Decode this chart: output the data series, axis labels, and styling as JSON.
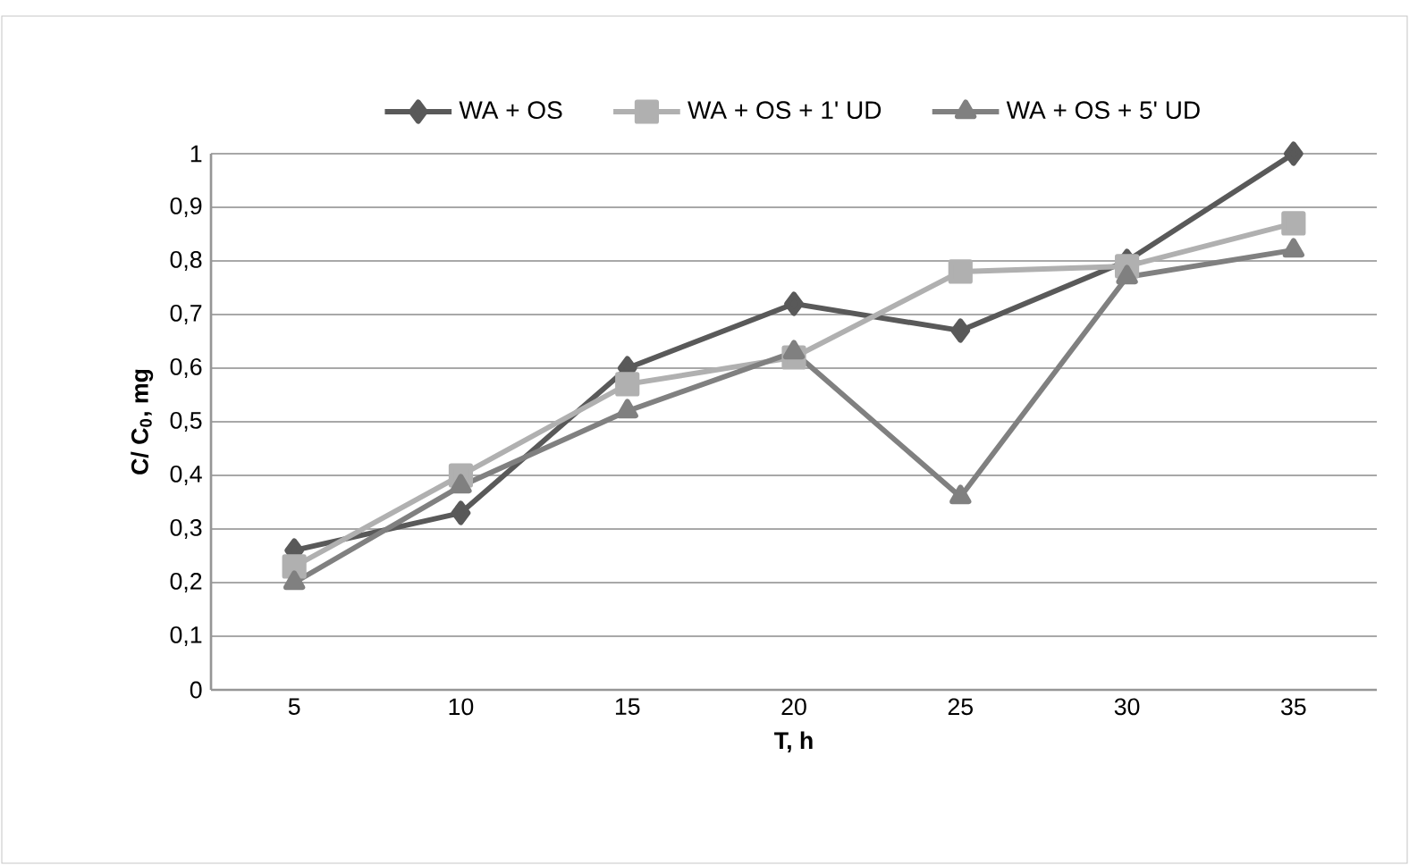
{
  "chart_data": {
    "type": "line",
    "xlabel": "T, h",
    "ylabel": "C/ C$_{0}$, mg",
    "categories": [
      "5",
      "10",
      "15",
      "20",
      "25",
      "30",
      "35"
    ],
    "series": [
      {
        "name": "WA + OS",
        "color": "#595959",
        "marker": "diamond",
        "values": [
          0.26,
          0.33,
          0.6,
          0.72,
          0.67,
          0.8,
          1.0
        ]
      },
      {
        "name": "WA + OS + 1' UD",
        "color": "#b0b0b0",
        "marker": "square",
        "values": [
          0.23,
          0.4,
          0.57,
          0.62,
          0.78,
          0.79,
          0.87
        ]
      },
      {
        "name": "WA + OS + 5' UD",
        "color": "#808080",
        "marker": "triangle",
        "values": [
          0.2,
          0.38,
          0.52,
          0.63,
          0.36,
          0.77,
          0.82
        ]
      }
    ],
    "ylim": [
      0,
      1
    ],
    "yticks": [
      0,
      {
        "value": 0.1,
        "label": "0,1"
      },
      {
        "value": 0.2,
        "label": "0,2"
      },
      {
        "value": 0.3,
        "label": "0,3"
      },
      {
        "value": 0.4,
        "label": "0,4"
      },
      {
        "value": 0.5,
        "label": "0,5"
      },
      {
        "value": 0.6,
        "label": "0,6"
      },
      {
        "value": 0.7,
        "label": "0,7"
      },
      {
        "value": 0.8,
        "label": "0,8"
      },
      {
        "value": 0.9,
        "label": "0,9"
      },
      1
    ],
    "grid": "y",
    "legend": "top",
    "line_style": "solid"
  }
}
